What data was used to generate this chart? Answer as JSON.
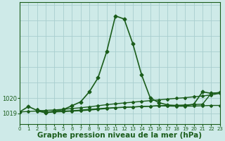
{
  "background_color": "#ceeae8",
  "grid_color": "#a8cece",
  "line_color": "#1a5c1a",
  "xlabel": "Graphe pression niveau de la mer (hPa)",
  "xlabel_fontsize": 7.5,
  "xtick_labels": [
    "0",
    "1",
    "2",
    "3",
    "4",
    "5",
    "6",
    "7",
    "8",
    "9",
    "10",
    "11",
    "12",
    "13",
    "14",
    "15",
    "16",
    "17",
    "18",
    "19",
    "20",
    "21",
    "22",
    "23"
  ],
  "ytick_values": [
    1019,
    1020
  ],
  "ylim": [
    1018.3,
    1026.2
  ],
  "xlim": [
    0,
    23
  ],
  "series": [
    {
      "x": [
        0,
        1,
        2,
        3,
        4,
        5,
        6,
        7,
        8,
        9,
        10,
        11,
        12,
        13,
        14,
        15,
        16,
        17,
        18,
        19,
        20,
        21,
        22,
        23
      ],
      "y": [
        1019.1,
        1019.45,
        1019.2,
        1019.05,
        1019.15,
        1019.25,
        1019.5,
        1019.75,
        1020.4,
        1021.3,
        1023.0,
        1025.3,
        1025.1,
        1023.5,
        1021.5,
        1020.0,
        1019.7,
        1019.55,
        1019.5,
        1019.5,
        1019.6,
        1020.4,
        1020.3,
        1020.35
      ],
      "marker": "D",
      "markersize": 2.5,
      "linewidth": 1.2,
      "zorder": 5
    },
    {
      "x": [
        0,
        1,
        2,
        3,
        4,
        5,
        6,
        7,
        8,
        9,
        10,
        11,
        12,
        13,
        14,
        15,
        16,
        17,
        18,
        19,
        20,
        21,
        22,
        23
      ],
      "y": [
        1019.1,
        1019.13,
        1019.16,
        1019.2,
        1019.23,
        1019.27,
        1019.32,
        1019.37,
        1019.43,
        1019.5,
        1019.57,
        1019.63,
        1019.68,
        1019.73,
        1019.78,
        1019.83,
        1019.88,
        1019.93,
        1019.98,
        1020.02,
        1020.08,
        1020.13,
        1020.2,
        1020.3
      ],
      "marker": "D",
      "markersize": 2.0,
      "linewidth": 1.0,
      "zorder": 4
    },
    {
      "x": [
        2,
        3,
        4,
        5,
        6,
        7,
        8,
        9,
        10,
        11,
        12,
        13,
        14,
        15,
        16,
        17,
        18,
        19,
        20,
        21,
        22,
        23
      ],
      "y": [
        1019.15,
        1019.05,
        1019.1,
        1019.12,
        1019.15,
        1019.18,
        1019.22,
        1019.27,
        1019.32,
        1019.37,
        1019.4,
        1019.42,
        1019.45,
        1019.47,
        1019.5,
        1019.52,
        1019.53,
        1019.55,
        1019.58,
        1019.6,
        1020.3,
        1020.35
      ],
      "marker": "D",
      "markersize": 2.0,
      "linewidth": 1.0,
      "zorder": 3
    },
    {
      "x": [
        2,
        3,
        4,
        5,
        6,
        7,
        8,
        9,
        10,
        11,
        12,
        13,
        14,
        15,
        16,
        17,
        18,
        19,
        20,
        21,
        22,
        23
      ],
      "y": [
        1019.25,
        1019.1,
        1019.12,
        1019.15,
        1019.18,
        1019.22,
        1019.27,
        1019.31,
        1019.35,
        1019.38,
        1019.4,
        1019.42,
        1019.45,
        1019.47,
        1019.5,
        1019.48,
        1019.47,
        1019.47,
        1019.48,
        1019.5,
        1019.52,
        1019.52
      ],
      "marker": "D",
      "markersize": 2.0,
      "linewidth": 1.0,
      "zorder": 2
    }
  ]
}
